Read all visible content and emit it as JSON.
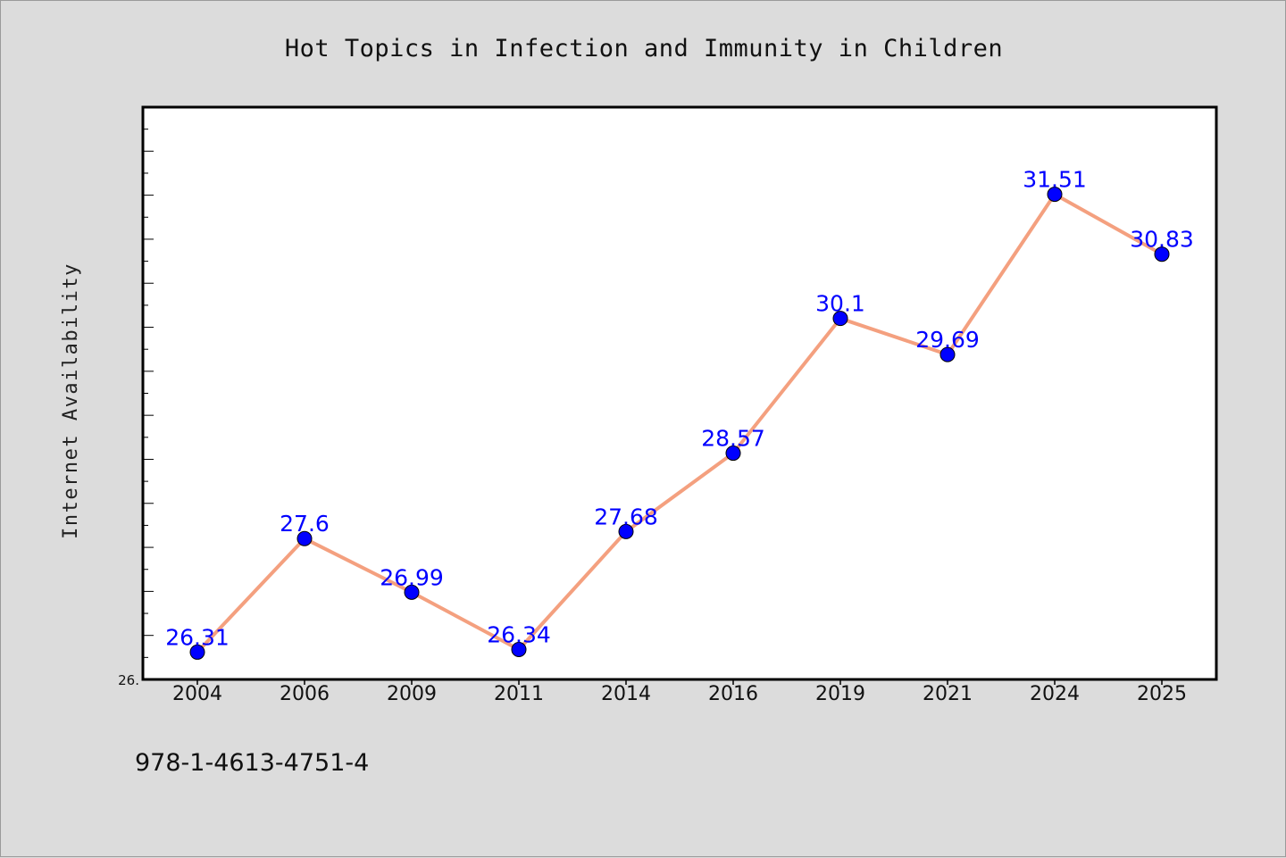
{
  "chart_data": {
    "type": "line",
    "title": "Hot Topics in Infection and Immunity in Children",
    "xlabel": "",
    "ylabel": "Internet Availability",
    "categories": [
      "2004",
      "2006",
      "2009",
      "2011",
      "2014",
      "2016",
      "2019",
      "2021",
      "2024",
      "2025"
    ],
    "series": [
      {
        "values": [
          26.31,
          27.6,
          26.99,
          26.34,
          27.68,
          28.57,
          30.1,
          29.69,
          31.51,
          30.83
        ],
        "labels": [
          "26.31",
          "27.6",
          "26.99",
          "26.34",
          "27.68",
          "28.57",
          "30.1",
          "29.69",
          "31.51",
          "30.83"
        ],
        "line_color": "#f4a07f",
        "marker_color": "#0000ff"
      }
    ],
    "ylim": [
      26.0,
      32.5
    ],
    "yticks_shown": [
      "26."
    ],
    "grid": false,
    "legend": "none"
  },
  "footer_text": "978-1-4613-4751-4",
  "colors": {
    "background": "#dcdcdc",
    "plot_background": "#ffffff",
    "axis": "#000000",
    "line": "#f4a07f",
    "marker": "#0000ff",
    "data_label": "#0000ff"
  }
}
